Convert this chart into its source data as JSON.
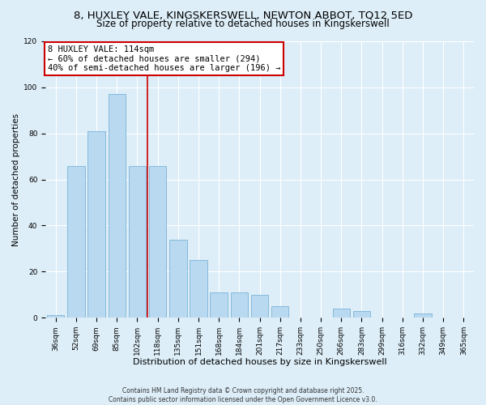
{
  "title": "8, HUXLEY VALE, KINGSKERSWELL, NEWTON ABBOT, TQ12 5ED",
  "subtitle": "Size of property relative to detached houses in Kingskerswell",
  "xlabel": "Distribution of detached houses by size in Kingskerswell",
  "ylabel": "Number of detached properties",
  "categories": [
    "36sqm",
    "52sqm",
    "69sqm",
    "85sqm",
    "102sqm",
    "118sqm",
    "135sqm",
    "151sqm",
    "168sqm",
    "184sqm",
    "201sqm",
    "217sqm",
    "233sqm",
    "250sqm",
    "266sqm",
    "283sqm",
    "299sqm",
    "316sqm",
    "332sqm",
    "349sqm",
    "365sqm"
  ],
  "values": [
    1,
    66,
    81,
    97,
    66,
    66,
    34,
    25,
    11,
    11,
    10,
    5,
    0,
    0,
    4,
    3,
    0,
    0,
    2,
    0,
    0
  ],
  "bar_color": "#b8d9ef",
  "bar_edge_color": "#7ab4d8",
  "vline_x_index": 5,
  "vline_color": "#cc0000",
  "annotation_title": "8 HUXLEY VALE: 114sqm",
  "annotation_line1": "← 60% of detached houses are smaller (294)",
  "annotation_line2": "40% of semi-detached houses are larger (196) →",
  "annotation_box_facecolor": "#ffffff",
  "annotation_box_edgecolor": "#cc0000",
  "ylim": [
    0,
    120
  ],
  "yticks": [
    0,
    20,
    40,
    60,
    80,
    100,
    120
  ],
  "bg_color": "#ddeef8",
  "grid_color": "#ffffff",
  "footer1": "Contains HM Land Registry data © Crown copyright and database right 2025.",
  "footer2": "Contains public sector information licensed under the Open Government Licence v3.0.",
  "title_fontsize": 9.5,
  "subtitle_fontsize": 8.5,
  "xlabel_fontsize": 8,
  "ylabel_fontsize": 7.5,
  "tick_fontsize": 6.5,
  "annot_fontsize": 7.5,
  "footer_fontsize": 5.5
}
